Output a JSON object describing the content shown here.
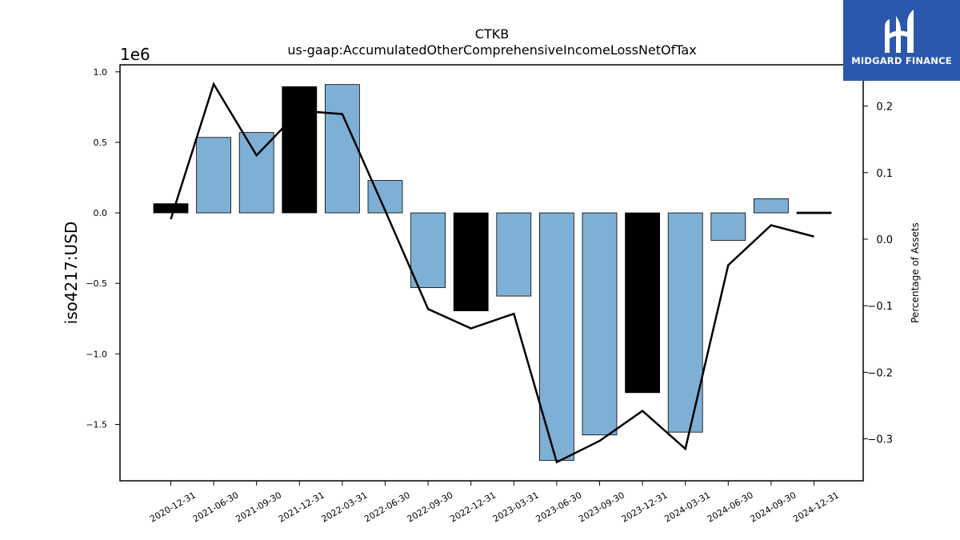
{
  "brand": {
    "name": "MIDGARD FINANCE",
    "icon": "midgard-logo-icon",
    "color": "#2b57ad"
  },
  "chart_data": {
    "type": "bar",
    "title": "CTKB",
    "subtitle": "us-gaap:AccumulatedOtherComprehensiveIncomeLossNetOfTax",
    "ylabel": "iso4217:USD",
    "y2label": "Percentage of Assets",
    "y_offset_label": "1e6",
    "categories": [
      "2020-12-31",
      "2021-06-30",
      "2021-09-30",
      "2021-12-31",
      "2022-03-31",
      "2022-06-30",
      "2022-09-30",
      "2022-12-31",
      "2023-03-31",
      "2023-06-30",
      "2023-09-30",
      "2023-12-31",
      "2024-03-31",
      "2024-06-30",
      "2024-09-30",
      "2024-12-31"
    ],
    "series": [
      {
        "type": "bar",
        "values": [
          0.065,
          0.535,
          0.57,
          0.895,
          0.91,
          0.23,
          -0.53,
          -0.695,
          -0.59,
          -1.755,
          -1.575,
          -1.275,
          -1.555,
          -0.195,
          0.1,
          0.008
        ],
        "highlight": [
          true,
          false,
          false,
          true,
          false,
          false,
          false,
          true,
          false,
          false,
          false,
          true,
          false,
          false,
          false,
          true
        ],
        "color": "#7eb0d5",
        "highlight_color": "#000000"
      },
      {
        "type": "line",
        "axis": "right",
        "values": [
          0.03,
          0.233,
          0.126,
          0.193,
          0.188,
          0.043,
          -0.105,
          -0.134,
          -0.112,
          -0.335,
          -0.303,
          -0.258,
          -0.315,
          -0.039,
          0.021,
          0.004
        ],
        "color": "#000000"
      }
    ],
    "ylim": [
      -1.9,
      1.05
    ],
    "y2lim": [
      -0.363,
      0.262
    ],
    "yticks": [
      1.0,
      0.5,
      0.0,
      -0.5,
      -1.0,
      -1.5
    ],
    "ytick_labels": [
      "1.0",
      "0.5",
      "0.0",
      "−0.5",
      "−1.0",
      "−1.5"
    ],
    "y2ticks": [
      0.2,
      0.1,
      0.0,
      -0.1,
      -0.2,
      -0.3
    ],
    "y2tick_labels": [
      "0.2",
      "0.1",
      "0.0",
      "−0.1",
      "−0.2",
      "−0.3"
    ],
    "grid": false,
    "legend": "none"
  }
}
